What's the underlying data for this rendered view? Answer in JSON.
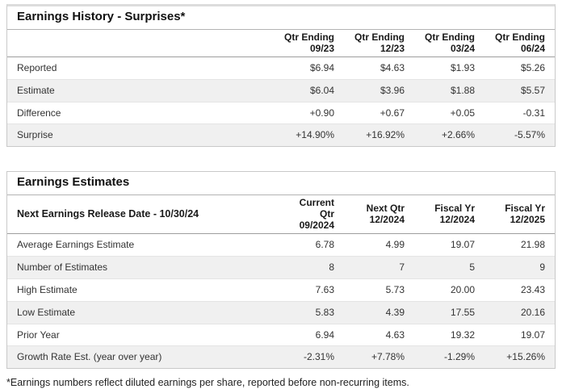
{
  "colors": {
    "positive": "#3e9b64",
    "negative": "#dd4b42"
  },
  "history": {
    "title": "Earnings History - Surprises*",
    "corner_label": "",
    "columns": [
      "Qtr Ending\n09/23",
      "Qtr Ending\n12/23",
      "Qtr Ending\n03/24",
      "Qtr Ending\n06/24"
    ],
    "rows": [
      {
        "label": "Reported",
        "values": [
          "$6.94",
          "$4.63",
          "$1.93",
          "$5.26"
        ],
        "colored": false
      },
      {
        "label": "Estimate",
        "values": [
          "$6.04",
          "$3.96",
          "$1.88",
          "$5.57"
        ],
        "colored": false
      },
      {
        "label": "Difference",
        "values": [
          "+0.90",
          "+0.67",
          "+0.05",
          "-0.31"
        ],
        "colored": true
      },
      {
        "label": "Surprise",
        "values": [
          "+14.90%",
          "+16.92%",
          "+2.66%",
          "-5.57%"
        ],
        "colored": true
      }
    ]
  },
  "estimates": {
    "title": "Earnings Estimates",
    "corner_label": "Next Earnings Release Date - 10/30/24",
    "columns": [
      "Current Qtr\n09/2024",
      "Next Qtr\n12/2024",
      "Fiscal Yr\n12/2024",
      "Fiscal Yr\n12/2025"
    ],
    "rows": [
      {
        "label": "Average Earnings Estimate",
        "values": [
          "6.78",
          "4.99",
          "19.07",
          "21.98"
        ],
        "colored": false
      },
      {
        "label": "Number of Estimates",
        "values": [
          "8",
          "7",
          "5",
          "9"
        ],
        "colored": false
      },
      {
        "label": "High Estimate",
        "values": [
          "7.63",
          "5.73",
          "20.00",
          "23.43"
        ],
        "colored": false
      },
      {
        "label": "Low Estimate",
        "values": [
          "5.83",
          "4.39",
          "17.55",
          "20.16"
        ],
        "colored": false
      },
      {
        "label": "Prior Year",
        "values": [
          "6.94",
          "4.63",
          "19.32",
          "19.07"
        ],
        "colored": false
      },
      {
        "label": "Growth Rate Est. (year over year)",
        "values": [
          "-2.31%",
          "+7.78%",
          "-1.29%",
          "+15.26%"
        ],
        "colored": true
      }
    ]
  },
  "footnote": "*Earnings numbers reflect diluted earnings per share, reported before non-recurring items."
}
